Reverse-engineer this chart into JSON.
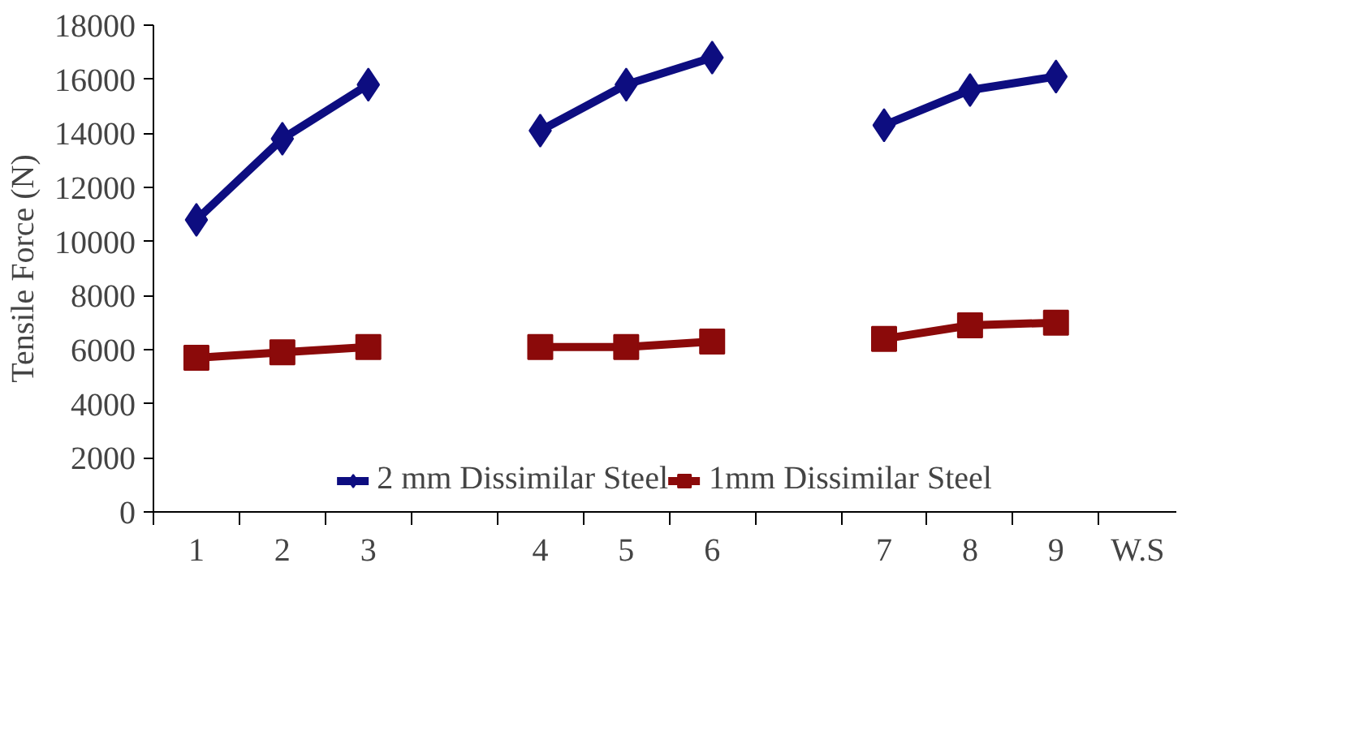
{
  "chart_data": {
    "type": "line",
    "ylabel": "Tensile Force (N)",
    "xlabel": "W.S",
    "categories": [
      "1",
      "2",
      "3",
      null,
      "4",
      "5",
      "6",
      null,
      "7",
      "8",
      "9"
    ],
    "series": [
      {
        "name": "2 mm Dissimilar Steel",
        "color": "#0d0d80",
        "marker": "diamond",
        "values": [
          10800,
          13800,
          15800,
          null,
          14100,
          15800,
          16800,
          null,
          14300,
          15600,
          16100
        ]
      },
      {
        "name": "1mm Dissimilar Steel",
        "color": "#8b0a0a",
        "marker": "square",
        "values": [
          5700,
          5900,
          6100,
          null,
          6100,
          6100,
          6300,
          null,
          6400,
          6900,
          7000
        ]
      }
    ],
    "ylim": [
      0,
      18000
    ],
    "yticks": [
      0,
      2000,
      4000,
      6000,
      8000,
      10000,
      12000,
      14000,
      16000,
      18000
    ],
    "grid": false,
    "legend": "bottom",
    "line_style": "solid"
  }
}
